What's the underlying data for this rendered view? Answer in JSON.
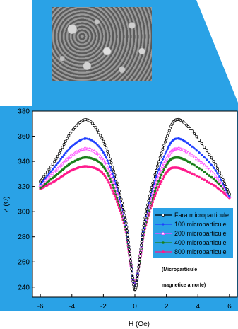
{
  "chart_data": {
    "type": "line",
    "xlabel": "H (Oe)",
    "ylabel": "Z (Ω)",
    "xlim": [
      -6.5,
      6.5
    ],
    "ylim": [
      232,
      380
    ],
    "xticks": [
      -6,
      -4,
      -2,
      0,
      2,
      4,
      6
    ],
    "yticks": [
      240,
      260,
      280,
      300,
      320,
      340,
      360,
      380
    ],
    "annotation": [
      "(Microparticule",
      "magnetice amorfe)"
    ],
    "legend_position": "bottom-right",
    "series": [
      {
        "name": "Fara microparticule",
        "color": "#000000",
        "marker": "circle-open",
        "points": [
          [
            -6,
            324
          ],
          [
            -5,
            342
          ],
          [
            -4,
            364
          ],
          [
            -3,
            373
          ],
          [
            -2,
            356
          ],
          [
            -1.2,
            326
          ],
          [
            -0.6,
            294
          ],
          [
            -0.3,
            264
          ],
          [
            0,
            238
          ],
          [
            0.3,
            262
          ],
          [
            0.6,
            292
          ],
          [
            1.2,
            326
          ],
          [
            2,
            358
          ],
          [
            2.6,
            373
          ],
          [
            3.5,
            366
          ],
          [
            5,
            340
          ],
          [
            6,
            314
          ]
        ]
      },
      {
        "name": "100 microparticule",
        "color": "#1f3fff",
        "marker": "diamond",
        "points": [
          [
            -6,
            322
          ],
          [
            -5,
            337
          ],
          [
            -4,
            352
          ],
          [
            -3,
            358
          ],
          [
            -2,
            347
          ],
          [
            -1.2,
            322
          ],
          [
            -0.6,
            292
          ],
          [
            -0.3,
            264
          ],
          [
            0,
            240
          ],
          [
            0.3,
            262
          ],
          [
            0.6,
            290
          ],
          [
            1.2,
            322
          ],
          [
            2,
            348
          ],
          [
            2.6,
            358
          ],
          [
            3.5,
            353
          ],
          [
            5,
            335
          ],
          [
            6,
            312
          ]
        ]
      },
      {
        "name": "200 microparticule",
        "color": "#ff44ff",
        "marker": "triangle-open",
        "points": [
          [
            -6,
            321
          ],
          [
            -5,
            333
          ],
          [
            -4,
            345
          ],
          [
            -3,
            350
          ],
          [
            -2,
            341
          ],
          [
            -1.2,
            318
          ],
          [
            -0.6,
            290
          ],
          [
            -0.3,
            263
          ],
          [
            0,
            241
          ],
          [
            0.3,
            262
          ],
          [
            0.6,
            288
          ],
          [
            1.2,
            318
          ],
          [
            2,
            342
          ],
          [
            2.6,
            350
          ],
          [
            3.5,
            346
          ],
          [
            5,
            330
          ],
          [
            6,
            312
          ]
        ]
      },
      {
        "name": "400 microparticule",
        "color": "#1a7f1a",
        "marker": "circle",
        "points": [
          [
            -6,
            319
          ],
          [
            -5,
            329
          ],
          [
            -4,
            339
          ],
          [
            -3,
            343
          ],
          [
            -2,
            336
          ],
          [
            -1.2,
            314
          ],
          [
            -0.6,
            288
          ],
          [
            -0.3,
            262
          ],
          [
            0,
            242
          ],
          [
            0.3,
            261
          ],
          [
            0.6,
            286
          ],
          [
            1.2,
            314
          ],
          [
            2,
            337
          ],
          [
            2.6,
            343
          ],
          [
            3.5,
            339
          ],
          [
            5,
            326
          ],
          [
            6,
            313
          ]
        ]
      },
      {
        "name": "800 microparticule",
        "color": "#ff1a8c",
        "marker": "circle",
        "points": [
          [
            -6,
            318
          ],
          [
            -5,
            325
          ],
          [
            -4,
            333
          ],
          [
            -3,
            336
          ],
          [
            -2,
            330
          ],
          [
            -1.2,
            310
          ],
          [
            -0.6,
            286
          ],
          [
            -0.3,
            261
          ],
          [
            0,
            243
          ],
          [
            0.3,
            260
          ],
          [
            0.6,
            284
          ],
          [
            1.2,
            310
          ],
          [
            2,
            331
          ],
          [
            2.6,
            335
          ],
          [
            3.5,
            331
          ],
          [
            5,
            321
          ],
          [
            6,
            311
          ]
        ]
      }
    ]
  },
  "colors": {
    "panel": "#2aa2e6"
  }
}
